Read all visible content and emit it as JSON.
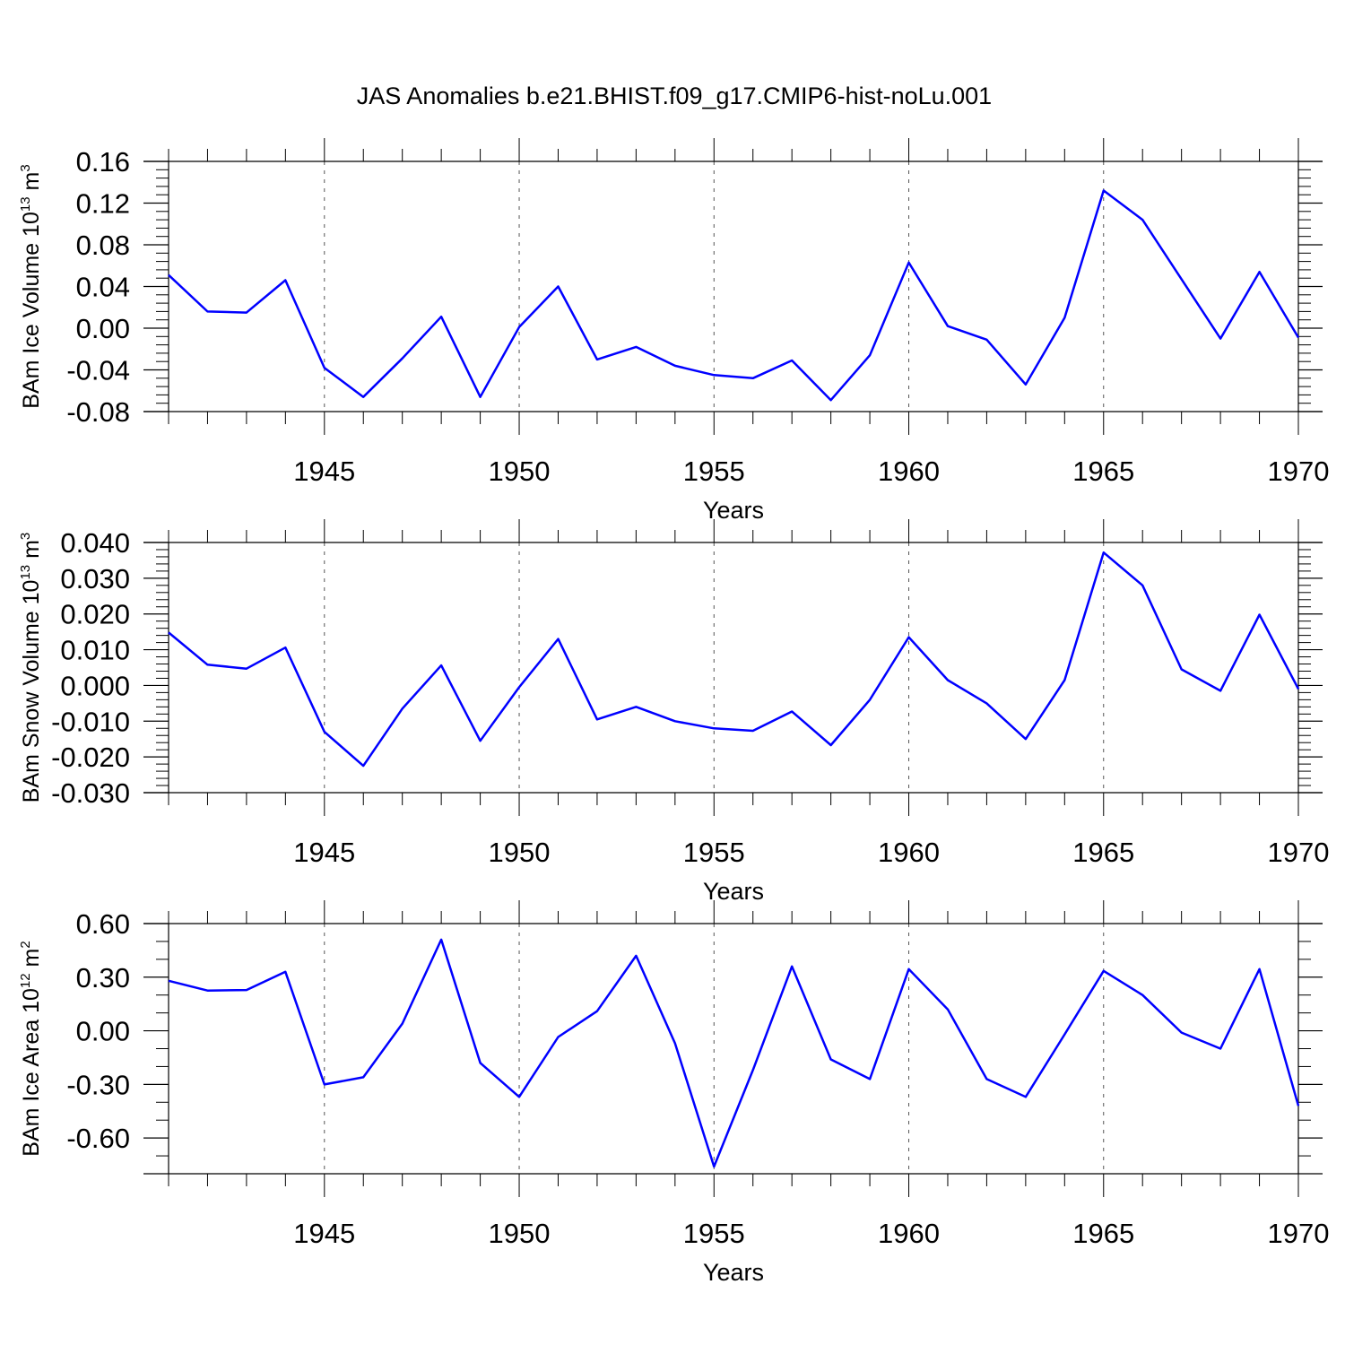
{
  "title": "JAS Anomalies b.e21.BHIST.f09_g17.CMIP6-hist-noLu.001",
  "colors": {
    "line": "#0000ff",
    "axis": "#000000",
    "grid": "#555555"
  },
  "chart_data": [
    {
      "type": "line",
      "ylabel": "BAm Ice Volume 10",
      "ylabel_exp": "13",
      "ylabel_unit": " m",
      "ylabel_unit_exp": "3",
      "xlabel": "Years",
      "xlim": [
        1941,
        1970
      ],
      "ylim": [
        -0.08,
        0.16
      ],
      "yticks": [
        -0.08,
        -0.04,
        0.0,
        0.04,
        0.08,
        0.12,
        0.16
      ],
      "ytick_labels": [
        "-0.08",
        "-0.04",
        "0.00",
        "0.04",
        "0.08",
        "0.12",
        "0.16"
      ],
      "yminor_step": 0.008,
      "xticks": [
        1945,
        1950,
        1955,
        1960,
        1965,
        1970
      ],
      "xtick_labels": [
        "1945",
        "1950",
        "1955",
        "1960",
        "1965",
        "1970"
      ],
      "x": [
        1941,
        1942,
        1943,
        1944,
        1945,
        1946,
        1947,
        1948,
        1949,
        1950,
        1951,
        1952,
        1953,
        1954,
        1955,
        1956,
        1957,
        1958,
        1959,
        1960,
        1961,
        1962,
        1963,
        1964,
        1965,
        1966,
        1967,
        1968,
        1969,
        1970
      ],
      "values": [
        0.051,
        0.016,
        0.015,
        0.046,
        -0.038,
        -0.066,
        -0.029,
        0.011,
        -0.066,
        0.001,
        0.04,
        -0.03,
        -0.018,
        -0.036,
        -0.045,
        -0.048,
        -0.031,
        -0.069,
        -0.026,
        0.063,
        0.002,
        -0.011,
        -0.054,
        0.01,
        0.132,
        0.104,
        0.047,
        -0.01,
        0.054,
        -0.009
      ]
    },
    {
      "type": "line",
      "ylabel": "BAm Snow Volume 10",
      "ylabel_exp": "13",
      "ylabel_unit": " m",
      "ylabel_unit_exp": "3",
      "xlabel": "Years",
      "xlim": [
        1941,
        1970
      ],
      "ylim": [
        -0.03,
        0.04
      ],
      "yticks": [
        -0.03,
        -0.02,
        -0.01,
        0.0,
        0.01,
        0.02,
        0.03,
        0.04
      ],
      "ytick_labels": [
        "-0.030",
        "-0.020",
        "-0.010",
        "0.000",
        "0.010",
        "0.020",
        "0.030",
        "0.040"
      ],
      "yminor_step": 0.002,
      "xticks": [
        1945,
        1950,
        1955,
        1960,
        1965,
        1970
      ],
      "xtick_labels": [
        "1945",
        "1950",
        "1955",
        "1960",
        "1965",
        "1970"
      ],
      "x": [
        1941,
        1942,
        1943,
        1944,
        1945,
        1946,
        1947,
        1948,
        1949,
        1950,
        1951,
        1952,
        1953,
        1954,
        1955,
        1956,
        1957,
        1958,
        1959,
        1960,
        1961,
        1962,
        1963,
        1964,
        1965,
        1966,
        1967,
        1968,
        1969,
        1970
      ],
      "values": [
        0.0148,
        0.0058,
        0.0047,
        0.0106,
        -0.013,
        -0.0225,
        -0.0065,
        0.0056,
        -0.0155,
        -0.0005,
        0.013,
        -0.0095,
        -0.006,
        -0.01,
        -0.012,
        -0.0127,
        -0.0073,
        -0.0167,
        -0.004,
        0.0135,
        0.0015,
        -0.005,
        -0.015,
        0.0015,
        0.0372,
        0.028,
        0.0045,
        -0.0015,
        0.0198,
        -0.001
      ]
    },
    {
      "type": "line",
      "ylabel": "BAm Ice Area 10",
      "ylabel_exp": "12",
      "ylabel_unit": " m",
      "ylabel_unit_exp": "2",
      "xlabel": "Years",
      "xlim": [
        1941,
        1970
      ],
      "ylim": [
        -0.8,
        0.6
      ],
      "yticks": [
        -0.6,
        -0.3,
        0.0,
        0.3,
        0.6
      ],
      "ytick_labels": [
        "-0.60",
        "-0.30",
        "0.00",
        "0.30",
        "0.60"
      ],
      "yminor_step": 0.1,
      "xticks": [
        1945,
        1950,
        1955,
        1960,
        1965,
        1970
      ],
      "xtick_labels": [
        "1945",
        "1950",
        "1955",
        "1960",
        "1965",
        "1970"
      ],
      "x": [
        1941,
        1942,
        1943,
        1944,
        1945,
        1946,
        1947,
        1948,
        1949,
        1950,
        1951,
        1952,
        1953,
        1954,
        1955,
        1956,
        1957,
        1958,
        1959,
        1960,
        1961,
        1962,
        1963,
        1964,
        1965,
        1966,
        1967,
        1968,
        1969,
        1970
      ],
      "values": [
        0.28,
        0.225,
        0.228,
        0.33,
        -0.3,
        -0.26,
        0.04,
        0.51,
        -0.18,
        -0.37,
        -0.035,
        0.11,
        0.42,
        -0.07,
        -0.76,
        -0.22,
        0.36,
        -0.16,
        -0.27,
        0.345,
        0.12,
        -0.27,
        -0.37,
        -0.02,
        0.335,
        0.2,
        -0.01,
        -0.1,
        0.345,
        -0.42
      ]
    }
  ]
}
